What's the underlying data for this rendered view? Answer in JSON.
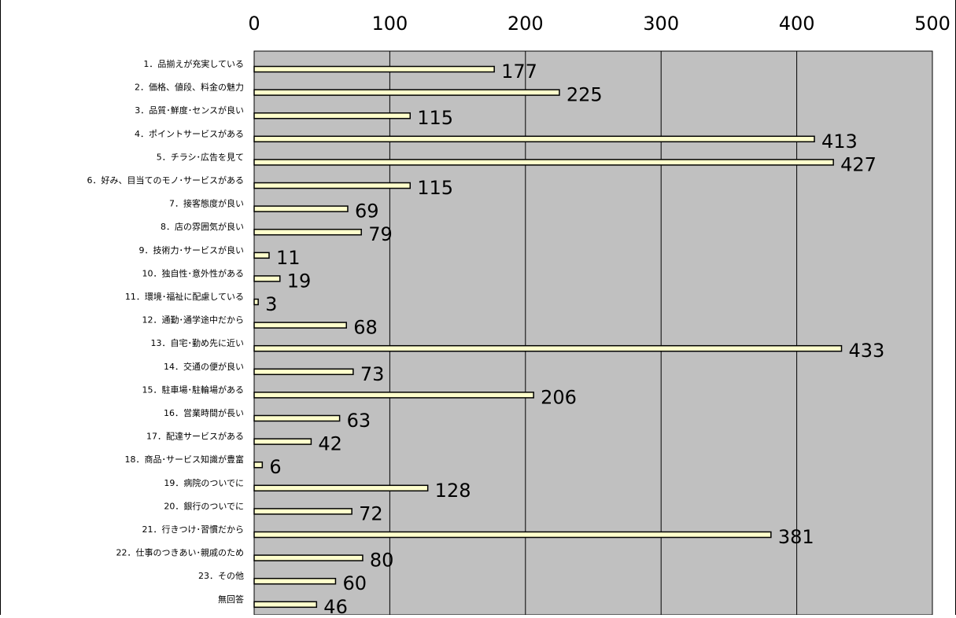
{
  "chart_data": {
    "type": "bar",
    "orientation": "horizontal",
    "x_axis_position": "top",
    "xlim": [
      0,
      500
    ],
    "x_ticks": [
      "0",
      "100",
      "200",
      "300",
      "400",
      "500"
    ],
    "grid": true,
    "categories": [
      "1．品揃えが充実している",
      "2．価格、値段、料金の魅力",
      "3．品質･鮮度･センスが良い",
      "4．ポイントサービスがある",
      "5．チラシ･広告を見て",
      "6．好み、目当てのモノ･サービスがある",
      "7．接客態度が良い",
      "8．店の雰囲気が良い",
      "9．技術力･サービスが良い",
      "10．独自性･意外性がある",
      "11．環境･福祉に配慮している",
      "12．通勤･通学途中だから",
      "13．自宅･勤め先に近い",
      "14．交通の便が良い",
      "15．駐車場･駐輪場がある",
      "16．営業時間が長い",
      "17．配達サービスがある",
      "18．商品･サービス知識が豊富",
      "19．病院のついでに",
      "20．銀行のついでに",
      "21．行きつけ･習慣だから",
      "22．仕事のつきあい･親戚のため",
      "23．その他",
      "無回答"
    ],
    "values": [
      177,
      225,
      115,
      413,
      427,
      115,
      69,
      79,
      11,
      19,
      3,
      68,
      433,
      73,
      206,
      63,
      42,
      6,
      128,
      72,
      381,
      80,
      60,
      46
    ],
    "colors": {
      "bar_fill": "#ffffcc",
      "plot_background": "#c0c0c0",
      "grid": "#000000"
    }
  }
}
